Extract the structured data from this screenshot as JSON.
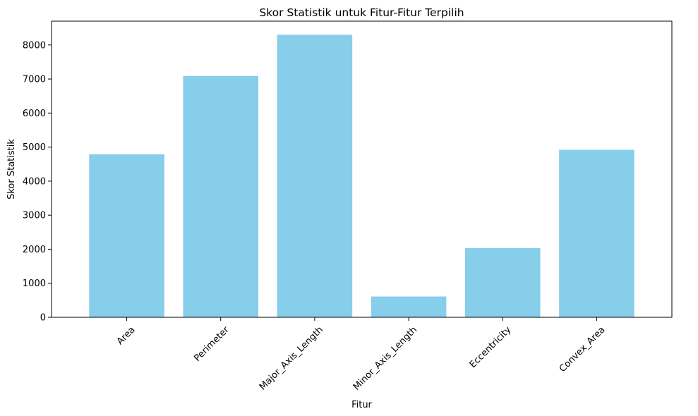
{
  "chart_data": {
    "type": "bar",
    "title": "Skor Statistik untuk Fitur-Fitur Terpilih",
    "xlabel": "Fitur",
    "ylabel": "Skor Statistik",
    "categories": [
      "Area",
      "Perimeter",
      "Major_Axis_Length",
      "Minor_Axis_Length",
      "Eccentricity",
      "Convex_Area"
    ],
    "values": [
      4790,
      7090,
      8300,
      610,
      2030,
      4920
    ],
    "ylim": [
      0,
      8700
    ],
    "yticks": [
      0,
      1000,
      2000,
      3000,
      4000,
      5000,
      6000,
      7000,
      8000
    ],
    "bar_color": "#87ceeb",
    "grid": false,
    "xtick_rotation": 45
  }
}
